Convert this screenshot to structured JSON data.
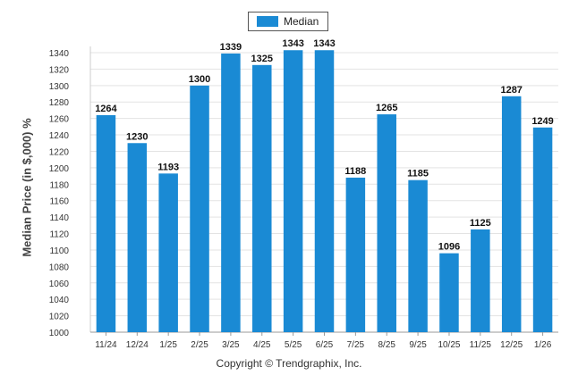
{
  "legend": {
    "label": "Median",
    "color": "#1a8ad4"
  },
  "copyright": "Copyright © Trendgraphix, Inc.",
  "chart_data": {
    "type": "bar",
    "categories": [
      "11/24",
      "12/24",
      "1/25",
      "2/25",
      "3/25",
      "4/25",
      "5/25",
      "6/25",
      "7/25",
      "8/25",
      "9/25",
      "10/25",
      "11/25",
      "12/25",
      "1/26"
    ],
    "series": [
      {
        "name": "Median",
        "values": [
          1264,
          1230,
          1193,
          1300,
          1339,
          1325,
          1343,
          1343,
          1188,
          1265,
          1185,
          1096,
          1125,
          1287,
          1249
        ]
      }
    ],
    "ylabel": "Median Price (in $,000) %",
    "xlabel": "",
    "ylim": [
      1000,
      1350
    ],
    "yticks": [
      1000,
      1020,
      1040,
      1060,
      1080,
      1100,
      1120,
      1140,
      1160,
      1180,
      1200,
      1220,
      1240,
      1260,
      1280,
      1300,
      1320,
      1340
    ],
    "grid": true,
    "legend_position": "top-center",
    "bar_color": "#1a8ad4"
  }
}
